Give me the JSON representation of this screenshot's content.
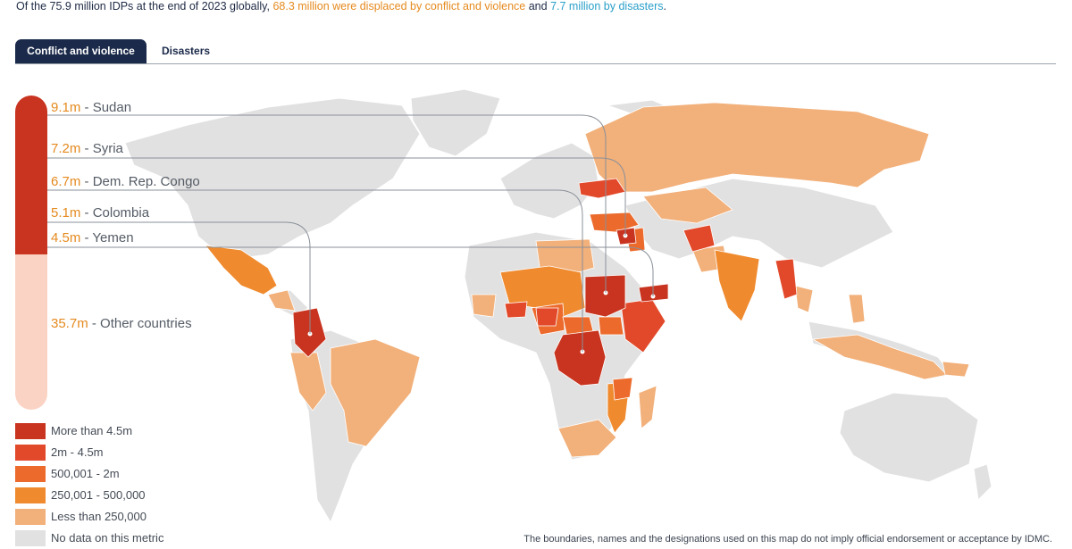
{
  "intro": {
    "prefix": "Of the 75.9 million IDPs at the end of 2023 globally, ",
    "conflict_text": "68.3 million were displaced by conflict and violence",
    "middle": " and ",
    "disaster_text": "7.7 million by disasters",
    "suffix": "."
  },
  "tabs": [
    {
      "label": "Conflict and violence",
      "active": true
    },
    {
      "label": "Disasters",
      "active": false
    }
  ],
  "callouts": [
    {
      "value": "9.1m",
      "country": " - Sudan"
    },
    {
      "value": "7.2m",
      "country": " - Syria"
    },
    {
      "value": "6.7m",
      "country": " - Dem. Rep. Congo"
    },
    {
      "value": "5.1m",
      "country": " - Colombia"
    },
    {
      "value": "4.5m",
      "country": " - Yemen"
    },
    {
      "value": "35.7m",
      "country": " - Other countries"
    }
  ],
  "legend": [
    {
      "label": "More than 4.5m",
      "color": "#c8341f"
    },
    {
      "label": "2m - 4.5m",
      "color": "#e2492a"
    },
    {
      "label": "500,001 - 2m",
      "color": "#ec6a2c"
    },
    {
      "label": "250,001 - 500,000",
      "color": "#ef8a2e"
    },
    {
      "label": "Less than 250,000",
      "color": "#f2b07a"
    },
    {
      "label": "No data on this metric",
      "color": "#e1e1e1"
    }
  ],
  "colors": {
    "land": "#e1e1e1",
    "top": "#c8341f",
    "high": "#e2492a",
    "mid": "#ec6a2c",
    "low_mid": "#ef8a2e",
    "low": "#f2b07a",
    "leader": "#8a9099",
    "bar_other": "#fbd3c4"
  },
  "disclaimer": "The boundaries, names and the designations used on this map do not imply official endorsement or acceptance by IDMC."
}
